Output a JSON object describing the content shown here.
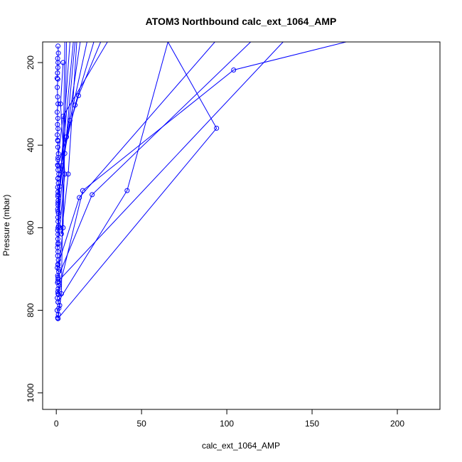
{
  "chart_data": {
    "type": "line",
    "title": "ATOM3 Northbound calc_ext_1064_AMP",
    "xlabel": "calc_ext_1064_AMP",
    "ylabel": "Pressure (mbar)",
    "xlim": [
      -8,
      225
    ],
    "ylim": [
      1040,
      150
    ],
    "y_reversed": true,
    "x_ticks": [
      0,
      50,
      100,
      150,
      200
    ],
    "y_ticks": [
      200,
      400,
      600,
      800,
      1000
    ],
    "grid": false,
    "legend": "none",
    "series_color": "#0000FF",
    "series": [
      {
        "x": [
          1.0,
          0.8,
          1.2,
          0.5,
          1.5,
          2.0,
          1.0,
          0.6,
          1.3,
          0.9,
          1.1,
          1.6,
          0.7,
          1.0,
          0.8,
          1.4,
          0.6,
          1.0,
          1.2,
          0.8,
          1.0,
          0.7,
          1.1,
          0.9,
          1.0,
          0.8,
          1.3,
          1.0,
          0.9,
          1.2,
          0.8,
          1.0,
          1.1,
          0.9,
          1.0,
          0.8,
          1.2,
          0.9,
          1.5,
          1.0,
          0.8,
          1.0,
          1.2,
          0.9,
          1.0
        ],
        "y": [
          820,
          818,
          810,
          800,
          795,
          788,
          780,
          770,
          762,
          755,
          748,
          740,
          733,
          725,
          716,
          706,
          697,
          688,
          678,
          668,
          658,
          648,
          637,
          627,
          616,
          606,
          596,
          585,
          575,
          565,
          555,
          545,
          534,
          524,
          513,
          502,
          492,
          481,
          470,
          460,
          448,
          435,
          421,
          405,
          390
        ]
      },
      {
        "x": [
          0.8,
          0.6,
          1.0,
          0.7,
          0.9,
          0.5,
          1.0,
          0.8,
          0.6,
          0.9
        ],
        "y": [
          388,
          375,
          360,
          350,
          335,
          320,
          300,
          283,
          260,
          240
        ]
      },
      {
        "x": [
          0.5,
          0.7,
          0.9,
          1.0,
          0.8,
          1.2,
          1.0
        ],
        "y": [
          238,
          225,
          212,
          200,
          190,
          177,
          160
        ]
      },
      {
        "x": [
          1.0,
          3.0,
          5.0
        ],
        "y": [
          820,
          760,
          150
        ]
      },
      {
        "x": [
          1.5,
          4.0,
          6.0
        ],
        "y": [
          700,
          600,
          150
        ]
      },
      {
        "x": [
          1.0,
          2.0,
          8.0
        ],
        "y": [
          640,
          500,
          150
        ]
      },
      {
        "x": [
          1.0,
          5.0,
          11.0
        ],
        "y": [
          600,
          420,
          150
        ]
      },
      {
        "x": [
          1.0,
          3.0,
          10.0
        ],
        "y": [
          560,
          450,
          150
        ]
      },
      {
        "x": [
          1.0,
          6.0,
          14.0
        ],
        "y": [
          540,
          380,
          150
        ]
      },
      {
        "x": [
          1.0,
          8.0,
          18.0
        ],
        "y": [
          520,
          340,
          150
        ]
      },
      {
        "x": [
          1.0,
          11.0,
          22.0
        ],
        "y": [
          480,
          303,
          150
        ]
      },
      {
        "x": [
          1.0,
          13.0,
          26.0
        ],
        "y": [
          450,
          280,
          150
        ]
      },
      {
        "x": [
          1.0,
          4.0,
          30.0
        ],
        "y": [
          430,
          330,
          150
        ]
      },
      {
        "x": [
          2.0,
          5.0,
          2.5,
          4.0
        ],
        "y": [
          600,
          470,
          300,
          200
        ]
      },
      {
        "x": [
          3.0,
          7.0,
          12.0
        ],
        "y": [
          615,
          470,
          150
        ]
      },
      {
        "x": [
          1.0,
          15.5,
          104,
          170
        ],
        "y": [
          760,
          510,
          218,
          150
        ]
      },
      {
        "x": [
          1.0,
          21.0,
          114
        ],
        "y": [
          720,
          520,
          150
        ]
      },
      {
        "x": [
          1.0,
          13.5,
          93
        ],
        "y": [
          690,
          527,
          150
        ]
      },
      {
        "x": [
          1.0,
          94.0,
          65.5,
          41.5,
          1.0
        ],
        "y": [
          820,
          359,
          150,
          510,
          780
        ]
      },
      {
        "x": [
          1.0,
          133
        ],
        "y": [
          730,
          150
        ]
      }
    ]
  }
}
